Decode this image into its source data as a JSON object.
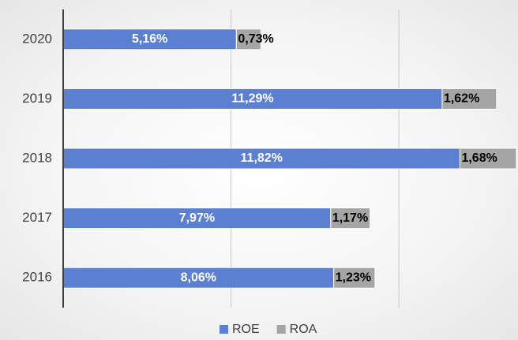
{
  "chart_data": {
    "type": "stacked_barh",
    "categories": [
      "2020",
      "2019",
      "2018",
      "2017",
      "2016"
    ],
    "series": [
      {
        "name": "ROE",
        "color": "#5b80d1",
        "values": [
          5.16,
          11.29,
          11.82,
          7.97,
          8.06
        ],
        "value_labels": [
          "5,16%",
          "11,29%",
          "11,82%",
          "7,97%",
          "8,06%"
        ]
      },
      {
        "name": "ROA",
        "color": "#a5a5a5",
        "values": [
          0.73,
          1.62,
          1.68,
          1.17,
          1.23
        ],
        "value_labels": [
          "0,73%",
          "1,62%",
          "1,68%",
          "1,17%",
          "1,23%"
        ]
      }
    ],
    "xlim": [
      0,
      13.55
    ],
    "xticks": [
      5,
      10
    ],
    "grid": true,
    "legend": "bottom"
  }
}
